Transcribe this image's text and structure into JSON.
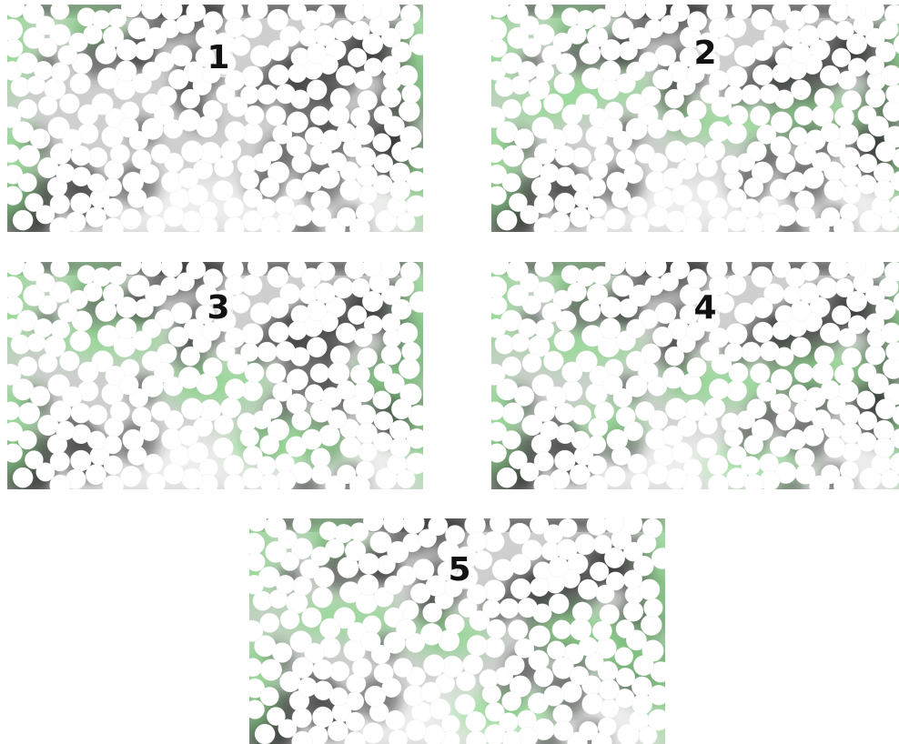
{
  "panels": [
    {
      "label": "1"
    },
    {
      "label": "2"
    },
    {
      "label": "3"
    },
    {
      "label": "4"
    },
    {
      "label": "5"
    }
  ]
}
